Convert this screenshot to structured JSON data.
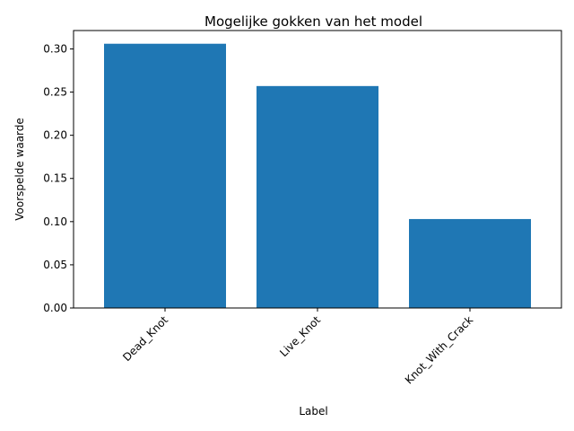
{
  "chart_data": {
    "type": "bar",
    "title": "Mogelijke gokken van het model",
    "xlabel": "Label",
    "ylabel": "Voorspelde waarde",
    "categories": [
      "Dead_Knot",
      "Live_Knot",
      "Knot_With_Crack"
    ],
    "values": [
      0.306,
      0.257,
      0.103
    ],
    "ylim": [
      0,
      0.3213
    ],
    "yticks": [
      "0.00",
      "0.05",
      "0.10",
      "0.15",
      "0.20",
      "0.25",
      "0.30"
    ],
    "bar_color": "#1f77b4",
    "grid": false,
    "xtick_rotation": "45 degrees"
  }
}
